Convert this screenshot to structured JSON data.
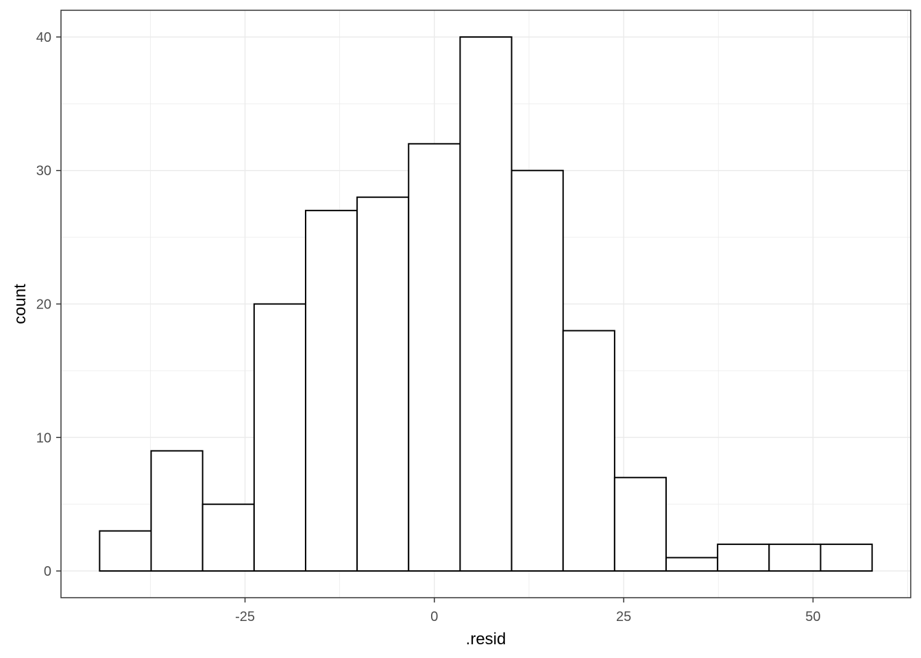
{
  "chart_data": {
    "type": "bar",
    "subtype": "histogram",
    "xlabel": ".resid",
    "ylabel": "count",
    "bin_width": 6.8,
    "bins": [
      {
        "x0": -44.2,
        "x1": -37.4,
        "count": 3
      },
      {
        "x0": -37.4,
        "x1": -30.6,
        "count": 9
      },
      {
        "x0": -30.6,
        "x1": -23.8,
        "count": 5
      },
      {
        "x0": -23.8,
        "x1": -17.0,
        "count": 20
      },
      {
        "x0": -17.0,
        "x1": -10.2,
        "count": 27
      },
      {
        "x0": -10.2,
        "x1": -3.4,
        "count": 28
      },
      {
        "x0": -3.4,
        "x1": 3.4,
        "count": 32
      },
      {
        "x0": 3.4,
        "x1": 10.2,
        "count": 40
      },
      {
        "x0": 10.2,
        "x1": 17.0,
        "count": 30
      },
      {
        "x0": 17.0,
        "x1": 23.8,
        "count": 18
      },
      {
        "x0": 23.8,
        "x1": 30.6,
        "count": 7
      },
      {
        "x0": 30.6,
        "x1": 37.4,
        "count": 1
      },
      {
        "x0": 37.4,
        "x1": 44.2,
        "count": 2
      },
      {
        "x0": 44.2,
        "x1": 51.0,
        "count": 2
      },
      {
        "x0": 51.0,
        "x1": 57.8,
        "count": 2
      }
    ],
    "xlim": [
      -49.3,
      62.9
    ],
    "ylim": [
      -2,
      42
    ],
    "x_ticks": [
      -25,
      0,
      25,
      50
    ],
    "x_tick_labels": [
      "-25",
      "0",
      "25",
      "50"
    ],
    "y_ticks": [
      0,
      10,
      20,
      30,
      40
    ],
    "y_tick_labels": [
      "0",
      "10",
      "20",
      "30",
      "40"
    ],
    "grid": true,
    "bar_fill": "#ffffff",
    "bar_stroke": "#000000",
    "grid_color": "#ebebeb",
    "panel_border": "#333333"
  }
}
